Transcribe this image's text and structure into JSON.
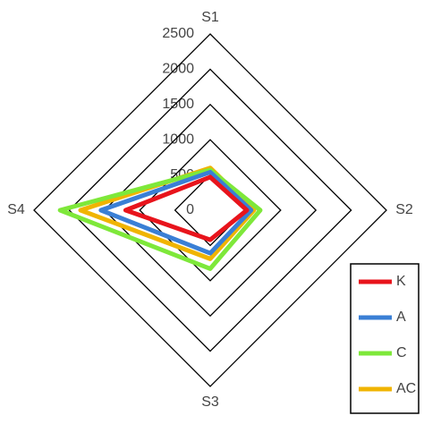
{
  "chart_data": {
    "type": "radar",
    "categories": [
      "S1",
      "S2",
      "S3",
      "S4"
    ],
    "ylim": [
      0,
      2500
    ],
    "yticks": [
      0,
      500,
      1000,
      1500,
      2000,
      2500
    ],
    "series": [
      {
        "name": "K",
        "color": "#e8141c",
        "values": [
          470,
          520,
          420,
          1200
        ]
      },
      {
        "name": "A",
        "color": "#3a7fd5",
        "values": [
          540,
          580,
          610,
          1550
        ]
      },
      {
        "name": "C",
        "color": "#7ee83a",
        "values": [
          570,
          710,
          830,
          2130
        ]
      },
      {
        "name": "AC",
        "color": "#f0b400",
        "values": [
          600,
          620,
          690,
          1840
        ]
      }
    ],
    "legend": "bottom-right"
  }
}
